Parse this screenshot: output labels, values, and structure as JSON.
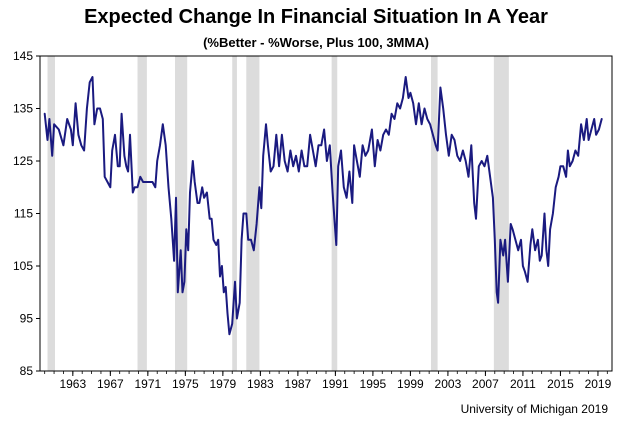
{
  "chart_data": {
    "type": "line",
    "title": "Expected Change In Financial Situation In A Year",
    "subtitle": "(%Better - %Worse, Plus 100, 3MMA)",
    "xlabel": "",
    "ylabel": "",
    "xlim": [
      1959.5,
      2020.5
    ],
    "ylim": [
      85,
      145
    ],
    "yticks": [
      85,
      95,
      105,
      115,
      125,
      135,
      145
    ],
    "xticks": [
      1963,
      1967,
      1971,
      1975,
      1979,
      1983,
      1987,
      1991,
      1995,
      1999,
      2003,
      2007,
      2011,
      2015,
      2019
    ],
    "grid": false,
    "line_color": "#1a1a80",
    "recession_color": "#dcdcdc",
    "recessions": [
      [
        1960.3,
        1961.1
      ],
      [
        1969.9,
        1970.9
      ],
      [
        1973.9,
        1975.2
      ],
      [
        1980.0,
        1980.5
      ],
      [
        1981.5,
        1982.9
      ],
      [
        1990.6,
        1991.2
      ],
      [
        2001.2,
        2001.9
      ],
      [
        2007.9,
        2009.5
      ]
    ],
    "series": [
      {
        "values": [
          [
            1960.0,
            134
          ],
          [
            1960.3,
            129
          ],
          [
            1960.5,
            133
          ],
          [
            1960.8,
            126
          ],
          [
            1961.0,
            132
          ],
          [
            1961.5,
            131
          ],
          [
            1962.0,
            128
          ],
          [
            1962.4,
            133
          ],
          [
            1962.8,
            131
          ],
          [
            1963.0,
            128
          ],
          [
            1963.3,
            136
          ],
          [
            1963.6,
            130
          ],
          [
            1963.9,
            128
          ],
          [
            1964.2,
            127
          ],
          [
            1964.5,
            135
          ],
          [
            1964.8,
            140
          ],
          [
            1965.1,
            141
          ],
          [
            1965.3,
            132
          ],
          [
            1965.6,
            135
          ],
          [
            1965.9,
            135
          ],
          [
            1966.2,
            133
          ],
          [
            1966.4,
            122
          ],
          [
            1966.7,
            121
          ],
          [
            1967.0,
            120
          ],
          [
            1967.2,
            127
          ],
          [
            1967.5,
            130
          ],
          [
            1967.8,
            124
          ],
          [
            1968.0,
            124
          ],
          [
            1968.2,
            134
          ],
          [
            1968.5,
            126
          ],
          [
            1968.7,
            124
          ],
          [
            1968.9,
            123
          ],
          [
            1969.1,
            130
          ],
          [
            1969.4,
            119
          ],
          [
            1969.6,
            120
          ],
          [
            1969.9,
            120
          ],
          [
            1970.2,
            122
          ],
          [
            1970.5,
            121
          ],
          [
            1971.0,
            121
          ],
          [
            1971.5,
            121
          ],
          [
            1971.8,
            120
          ],
          [
            1972.0,
            125
          ],
          [
            1972.3,
            128
          ],
          [
            1972.6,
            132
          ],
          [
            1972.9,
            128
          ],
          [
            1973.2,
            120
          ],
          [
            1973.5,
            114
          ],
          [
            1973.8,
            106
          ],
          [
            1974.0,
            118
          ],
          [
            1974.2,
            100
          ],
          [
            1974.5,
            108
          ],
          [
            1974.7,
            100
          ],
          [
            1974.9,
            102
          ],
          [
            1975.1,
            112
          ],
          [
            1975.3,
            108
          ],
          [
            1975.5,
            119
          ],
          [
            1975.8,
            125
          ],
          [
            1976.0,
            121
          ],
          [
            1976.3,
            117
          ],
          [
            1976.5,
            117
          ],
          [
            1976.8,
            120
          ],
          [
            1977.0,
            118
          ],
          [
            1977.3,
            119
          ],
          [
            1977.6,
            114
          ],
          [
            1977.8,
            114
          ],
          [
            1978.0,
            110
          ],
          [
            1978.3,
            109
          ],
          [
            1978.5,
            110
          ],
          [
            1978.7,
            103
          ],
          [
            1978.9,
            105
          ],
          [
            1979.1,
            100
          ],
          [
            1979.3,
            101
          ],
          [
            1979.5,
            96
          ],
          [
            1979.7,
            92
          ],
          [
            1980.0,
            94
          ],
          [
            1980.3,
            102
          ],
          [
            1980.5,
            95
          ],
          [
            1980.8,
            98
          ],
          [
            1981.0,
            110
          ],
          [
            1981.2,
            115
          ],
          [
            1981.5,
            115
          ],
          [
            1981.7,
            110
          ],
          [
            1982.0,
            110
          ],
          [
            1982.3,
            108
          ],
          [
            1982.6,
            113
          ],
          [
            1982.9,
            120
          ],
          [
            1983.1,
            116
          ],
          [
            1983.3,
            126
          ],
          [
            1983.6,
            132
          ],
          [
            1983.8,
            128
          ],
          [
            1984.1,
            123
          ],
          [
            1984.4,
            124
          ],
          [
            1984.7,
            130
          ],
          [
            1985.0,
            124
          ],
          [
            1985.3,
            130
          ],
          [
            1985.6,
            125
          ],
          [
            1985.9,
            123
          ],
          [
            1986.2,
            127
          ],
          [
            1986.5,
            124
          ],
          [
            1986.8,
            126
          ],
          [
            1987.1,
            123
          ],
          [
            1987.4,
            127
          ],
          [
            1987.7,
            124
          ],
          [
            1988.0,
            124
          ],
          [
            1988.3,
            130
          ],
          [
            1988.6,
            127
          ],
          [
            1988.9,
            124
          ],
          [
            1989.2,
            128
          ],
          [
            1989.5,
            128
          ],
          [
            1989.8,
            131
          ],
          [
            1990.1,
            125
          ],
          [
            1990.4,
            128
          ],
          [
            1990.7,
            119
          ],
          [
            1990.9,
            114
          ],
          [
            1991.1,
            109
          ],
          [
            1991.3,
            124
          ],
          [
            1991.6,
            127
          ],
          [
            1991.9,
            120
          ],
          [
            1992.2,
            118
          ],
          [
            1992.5,
            123
          ],
          [
            1992.8,
            117
          ],
          [
            1993.0,
            128
          ],
          [
            1993.3,
            125
          ],
          [
            1993.6,
            122
          ],
          [
            1993.9,
            128
          ],
          [
            1994.2,
            126
          ],
          [
            1994.5,
            127
          ],
          [
            1994.9,
            131
          ],
          [
            1995.2,
            124
          ],
          [
            1995.5,
            129
          ],
          [
            1995.8,
            127
          ],
          [
            1996.1,
            130
          ],
          [
            1996.4,
            131
          ],
          [
            1996.7,
            130
          ],
          [
            1997.0,
            134
          ],
          [
            1997.3,
            133
          ],
          [
            1997.6,
            136
          ],
          [
            1997.9,
            135
          ],
          [
            1998.2,
            137
          ],
          [
            1998.5,
            141
          ],
          [
            1998.8,
            137
          ],
          [
            1999.0,
            138
          ],
          [
            1999.3,
            136
          ],
          [
            1999.6,
            132
          ],
          [
            1999.9,
            136
          ],
          [
            2000.2,
            132
          ],
          [
            2000.5,
            135
          ],
          [
            2000.8,
            133
          ],
          [
            2001.1,
            132
          ],
          [
            2001.4,
            130
          ],
          [
            2001.7,
            128
          ],
          [
            2001.9,
            127
          ],
          [
            2002.2,
            139
          ],
          [
            2002.5,
            135
          ],
          [
            2002.8,
            130
          ],
          [
            2003.1,
            126
          ],
          [
            2003.4,
            130
          ],
          [
            2003.7,
            129
          ],
          [
            2004.0,
            126
          ],
          [
            2004.3,
            125
          ],
          [
            2004.6,
            127
          ],
          [
            2004.9,
            125
          ],
          [
            2005.2,
            122
          ],
          [
            2005.5,
            128
          ],
          [
            2005.8,
            117
          ],
          [
            2006.0,
            114
          ],
          [
            2006.3,
            124
          ],
          [
            2006.6,
            125
          ],
          [
            2006.9,
            124
          ],
          [
            2007.2,
            126
          ],
          [
            2007.5,
            122
          ],
          [
            2007.8,
            118
          ],
          [
            2008.0,
            110
          ],
          [
            2008.2,
            100
          ],
          [
            2008.35,
            98
          ],
          [
            2008.6,
            110
          ],
          [
            2008.9,
            107
          ],
          [
            2009.1,
            110
          ],
          [
            2009.4,
            102
          ],
          [
            2009.7,
            113
          ],
          [
            2009.9,
            112
          ],
          [
            2010.2,
            110
          ],
          [
            2010.5,
            108
          ],
          [
            2010.8,
            110
          ],
          [
            2011.0,
            105
          ],
          [
            2011.2,
            104
          ],
          [
            2011.5,
            102
          ],
          [
            2011.8,
            109
          ],
          [
            2012.0,
            112
          ],
          [
            2012.3,
            108
          ],
          [
            2012.6,
            110
          ],
          [
            2012.8,
            106
          ],
          [
            2013.0,
            107
          ],
          [
            2013.3,
            115
          ],
          [
            2013.5,
            108
          ],
          [
            2013.7,
            105
          ],
          [
            2013.9,
            112
          ],
          [
            2014.2,
            115
          ],
          [
            2014.5,
            120
          ],
          [
            2014.8,
            122
          ],
          [
            2015.0,
            124
          ],
          [
            2015.3,
            124
          ],
          [
            2015.6,
            122
          ],
          [
            2015.8,
            127
          ],
          [
            2016.0,
            124
          ],
          [
            2016.3,
            125
          ],
          [
            2016.6,
            127
          ],
          [
            2016.9,
            126
          ],
          [
            2017.2,
            132
          ],
          [
            2017.5,
            129
          ],
          [
            2017.8,
            133
          ],
          [
            2018.0,
            129
          ],
          [
            2018.3,
            131
          ],
          [
            2018.6,
            133
          ],
          [
            2018.8,
            130
          ],
          [
            2019.1,
            131
          ],
          [
            2019.4,
            133
          ]
        ]
      }
    ]
  },
  "source": "University of Michigan 2019"
}
